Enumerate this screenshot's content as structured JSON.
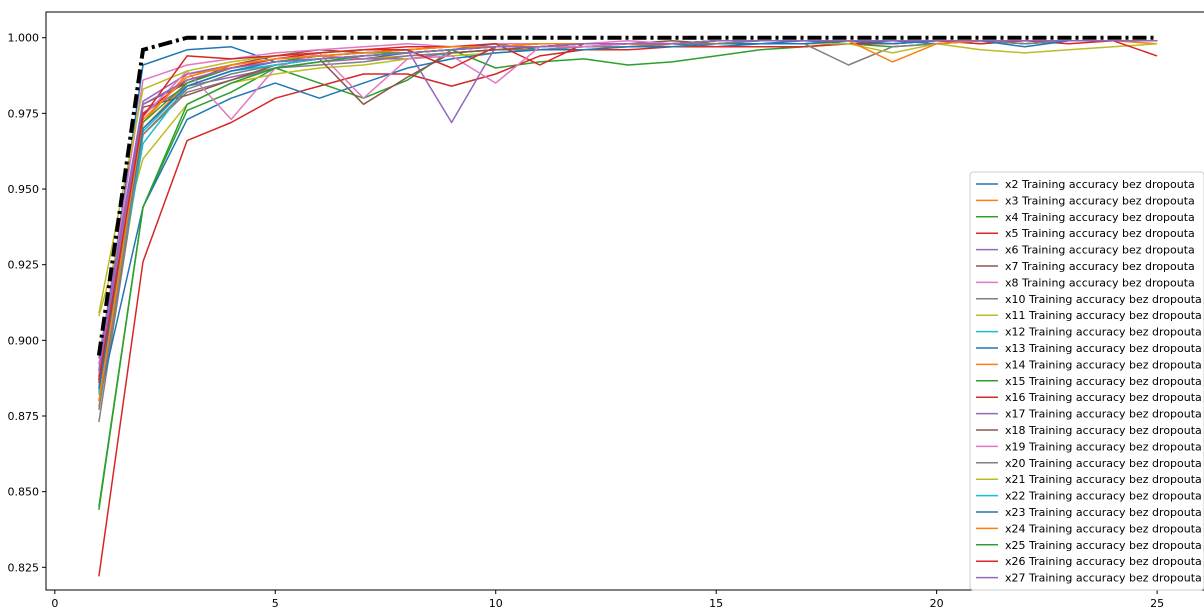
{
  "chart_data": {
    "type": "line",
    "title": "",
    "xlabel": "",
    "ylabel": "",
    "xlim": [
      -0.2,
      26.2
    ],
    "ylim": [
      0.8175,
      1.0085
    ],
    "xticks": [
      0,
      5,
      10,
      15,
      20,
      25
    ],
    "yticks": [
      0.825,
      0.85,
      0.875,
      0.9,
      0.925,
      0.95,
      0.975,
      1.0
    ],
    "xtick_labels": [
      "0",
      "5",
      "10",
      "15",
      "20",
      "25"
    ],
    "ytick_labels": [
      "0.825",
      "0.850",
      "0.875",
      "0.900",
      "0.925",
      "0.950",
      "0.975",
      "1.000"
    ],
    "grid": false,
    "legend_position": "lower-right",
    "x": [
      1,
      2,
      3,
      4,
      5,
      6,
      7,
      8,
      9,
      10,
      11,
      12,
      13,
      14,
      15,
      16,
      17,
      18,
      19,
      20,
      21,
      22,
      23,
      24,
      25
    ],
    "series": [
      {
        "name": "x2 Training accuracy bez dropouta",
        "color": "#1f77b4",
        "values": [
          0.89,
          0.991,
          0.996,
          0.997,
          0.992,
          0.994,
          0.993,
          0.995,
          0.996,
          0.998,
          0.996,
          0.997,
          0.998,
          0.998,
          0.997,
          0.998,
          0.999,
          0.998,
          0.999,
          0.998,
          0.999,
          0.998,
          0.999,
          0.999,
          0.999
        ]
      },
      {
        "name": "x3 Training accuracy bez dropouta",
        "color": "#ff7f0e",
        "values": [
          0.885,
          0.97,
          0.985,
          0.99,
          0.993,
          0.994,
          0.993,
          0.994,
          0.995,
          0.996,
          0.997,
          0.997,
          0.998,
          0.997,
          0.998,
          0.998,
          0.998,
          0.999,
          0.998,
          0.999,
          0.998,
          0.999,
          0.999,
          0.999,
          0.998
        ]
      },
      {
        "name": "x4 Training accuracy bez dropouta",
        "color": "#2ca02c",
        "values": [
          0.844,
          0.944,
          0.976,
          0.982,
          0.99,
          0.985,
          0.98,
          0.986,
          0.996,
          0.99,
          0.992,
          0.993,
          0.991,
          0.992,
          0.994,
          0.996,
          0.997,
          0.998,
          0.997,
          0.998,
          0.999,
          0.998,
          0.999,
          0.999,
          0.999
        ]
      },
      {
        "name": "x5 Training accuracy bez dropouta",
        "color": "#d62728",
        "values": [
          0.822,
          0.926,
          0.966,
          0.972,
          0.98,
          0.984,
          0.988,
          0.988,
          0.984,
          0.988,
          0.994,
          0.996,
          0.996,
          0.997,
          0.997,
          0.997,
          0.997,
          0.998,
          0.998,
          0.999,
          0.998,
          0.999,
          0.998,
          0.999,
          0.999
        ]
      },
      {
        "name": "x6 Training accuracy bez dropouta",
        "color": "#9467bd",
        "values": [
          0.892,
          0.975,
          0.984,
          0.987,
          0.99,
          0.992,
          0.993,
          0.993,
          0.995,
          0.996,
          0.996,
          0.997,
          0.997,
          0.998,
          0.998,
          0.998,
          0.998,
          0.999,
          0.998,
          0.999,
          0.999,
          0.999,
          0.999,
          0.999,
          0.999
        ]
      },
      {
        "name": "x7 Training accuracy bez dropouta",
        "color": "#8c564b",
        "values": [
          0.888,
          0.978,
          0.985,
          0.991,
          0.994,
          0.996,
          0.995,
          0.996,
          0.997,
          0.997,
          0.998,
          0.998,
          0.998,
          0.999,
          0.998,
          0.999,
          0.999,
          0.999,
          0.999,
          0.999,
          0.999,
          0.999,
          0.999,
          0.999,
          0.999
        ]
      },
      {
        "name": "x8 Training accuracy bez dropouta",
        "color": "#e377c2",
        "values": [
          0.892,
          0.986,
          0.991,
          0.993,
          0.995,
          0.996,
          0.997,
          0.998,
          0.997,
          0.998,
          0.998,
          0.998,
          0.999,
          0.998,
          0.999,
          0.999,
          0.999,
          0.999,
          0.999,
          0.999,
          0.999,
          0.999,
          0.999,
          0.999,
          0.999
        ]
      },
      {
        "name": "x10 Training accuracy bez dropouta",
        "color": "#7f7f7f",
        "values": [
          0.873,
          0.968,
          0.982,
          0.986,
          0.99,
          0.991,
          0.992,
          0.994,
          0.995,
          0.996,
          0.996,
          0.997,
          0.997,
          0.998,
          0.998,
          0.998,
          0.998,
          0.991,
          0.997,
          0.998,
          0.999,
          0.998,
          0.999,
          0.999,
          0.999
        ]
      },
      {
        "name": "x11 Training accuracy bez dropouta",
        "color": "#bcbd22",
        "values": [
          0.908,
          0.96,
          0.978,
          0.985,
          0.988,
          0.99,
          0.991,
          0.993,
          0.994,
          0.995,
          0.996,
          0.996,
          0.997,
          0.997,
          0.998,
          0.998,
          0.998,
          0.998,
          0.995,
          0.998,
          0.996,
          0.995,
          0.996,
          0.997,
          0.998
        ]
      },
      {
        "name": "x12 Training accuracy bez dropouta",
        "color": "#17becf",
        "values": [
          0.882,
          0.965,
          0.984,
          0.989,
          0.991,
          0.993,
          0.994,
          0.995,
          0.996,
          0.997,
          0.997,
          0.998,
          0.998,
          0.998,
          0.999,
          0.999,
          0.999,
          0.999,
          0.999,
          0.999,
          0.999,
          0.999,
          0.999,
          0.999,
          0.999
        ]
      },
      {
        "name": "x13 Training accuracy bez dropouta",
        "color": "#1f77b4",
        "values": [
          0.88,
          0.944,
          0.973,
          0.98,
          0.985,
          0.98,
          0.985,
          0.99,
          0.993,
          0.995,
          0.996,
          0.996,
          0.997,
          0.997,
          0.998,
          0.998,
          0.998,
          0.999,
          0.998,
          0.999,
          0.999,
          0.997,
          0.999,
          0.999,
          0.999
        ]
      },
      {
        "name": "x14 Training accuracy bez dropouta",
        "color": "#ff7f0e",
        "values": [
          0.878,
          0.972,
          0.988,
          0.99,
          0.993,
          0.994,
          0.995,
          0.996,
          0.997,
          0.997,
          0.998,
          0.998,
          0.998,
          0.998,
          0.999,
          0.999,
          0.999,
          0.999,
          0.992,
          0.998,
          0.999,
          0.999,
          0.999,
          0.999,
          0.999
        ]
      },
      {
        "name": "x15 Training accuracy bez dropouta",
        "color": "#2ca02c",
        "values": [
          0.886,
          0.972,
          0.985,
          0.99,
          0.992,
          0.994,
          0.995,
          0.995,
          0.996,
          0.997,
          0.997,
          0.998,
          0.998,
          0.998,
          0.999,
          0.999,
          0.999,
          0.999,
          0.999,
          0.999,
          0.999,
          0.999,
          0.999,
          0.999,
          0.999
        ]
      },
      {
        "name": "x16 Training accuracy bez dropouta",
        "color": "#d62728",
        "values": [
          0.886,
          0.975,
          0.986,
          0.99,
          0.993,
          0.995,
          0.996,
          0.997,
          0.997,
          0.998,
          0.991,
          0.998,
          0.998,
          0.998,
          0.999,
          0.999,
          0.999,
          0.999,
          0.999,
          0.999,
          0.999,
          0.999,
          0.999,
          0.999,
          0.994
        ]
      },
      {
        "name": "x17 Training accuracy bez dropouta",
        "color": "#9467bd",
        "values": [
          0.894,
          0.979,
          0.988,
          0.991,
          0.993,
          0.994,
          0.995,
          0.996,
          0.972,
          0.997,
          0.997,
          0.998,
          0.998,
          0.998,
          0.999,
          0.999,
          0.999,
          0.999,
          0.999,
          0.999,
          0.999,
          0.999,
          0.999,
          0.999,
          0.999
        ]
      },
      {
        "name": "x18 Training accuracy bez dropouta",
        "color": "#8c564b",
        "values": [
          0.887,
          0.977,
          0.981,
          0.986,
          0.991,
          0.993,
          0.978,
          0.987,
          0.995,
          0.996,
          0.997,
          0.997,
          0.998,
          0.998,
          0.998,
          0.999,
          0.999,
          0.999,
          0.999,
          0.999,
          0.999,
          0.999,
          0.999,
          0.999,
          0.999
        ]
      },
      {
        "name": "x19 Training accuracy bez dropouta",
        "color": "#e377c2",
        "values": [
          0.889,
          0.974,
          0.989,
          0.973,
          0.99,
          0.995,
          0.98,
          0.993,
          0.994,
          0.985,
          0.997,
          0.997,
          0.998,
          0.998,
          0.999,
          0.999,
          0.999,
          0.999,
          0.999,
          0.999,
          0.999,
          0.999,
          0.999,
          0.999,
          0.999
        ]
      },
      {
        "name": "x20 Training accuracy bez dropouta",
        "color": "#7f7f7f",
        "values": [
          0.877,
          0.968,
          0.983,
          0.988,
          0.991,
          0.993,
          0.994,
          0.995,
          0.996,
          0.997,
          0.997,
          0.998,
          0.998,
          0.998,
          0.998,
          0.999,
          0.999,
          0.999,
          0.999,
          0.999,
          0.999,
          0.999,
          0.999,
          0.999,
          0.999
        ]
      },
      {
        "name": "x21 Training accuracy bez dropouta",
        "color": "#bcbd22",
        "values": [
          0.909,
          0.983,
          0.989,
          0.992,
          0.994,
          0.995,
          0.996,
          0.996,
          0.997,
          0.997,
          0.998,
          0.998,
          0.998,
          0.998,
          0.999,
          0.999,
          0.999,
          0.999,
          0.999,
          0.999,
          0.999,
          0.999,
          0.999,
          0.999,
          0.999
        ]
      },
      {
        "name": "x22 Training accuracy bez dropouta",
        "color": "#17becf",
        "values": [
          0.883,
          0.969,
          0.984,
          0.989,
          0.991,
          0.993,
          0.994,
          0.995,
          0.996,
          0.997,
          0.997,
          0.998,
          0.998,
          0.998,
          0.999,
          0.999,
          0.999,
          0.999,
          0.999,
          0.999,
          0.999,
          0.999,
          0.999,
          0.999,
          0.999
        ]
      },
      {
        "name": "x23 Training accuracy bez dropouta",
        "color": "#1f77b4",
        "values": [
          0.884,
          0.97,
          0.984,
          0.989,
          0.992,
          0.993,
          0.994,
          0.995,
          0.996,
          0.997,
          0.997,
          0.998,
          0.998,
          0.998,
          0.999,
          0.999,
          0.999,
          0.999,
          0.999,
          0.999,
          0.999,
          0.999,
          0.999,
          0.999,
          0.999
        ]
      },
      {
        "name": "x24 Training accuracy bez dropouta",
        "color": "#ff7f0e",
        "values": [
          0.88,
          0.973,
          0.987,
          0.991,
          0.993,
          0.994,
          0.995,
          0.996,
          0.997,
          0.997,
          0.998,
          0.998,
          0.998,
          0.998,
          0.999,
          0.999,
          0.999,
          0.999,
          0.999,
          0.999,
          0.999,
          0.999,
          0.999,
          0.999,
          0.999
        ]
      },
      {
        "name": "x25 Training accuracy bez dropouta",
        "color": "#2ca02c",
        "values": [
          0.845,
          0.944,
          0.978,
          0.985,
          0.99,
          0.992,
          0.994,
          0.995,
          0.996,
          0.997,
          0.997,
          0.998,
          0.998,
          0.998,
          0.999,
          0.999,
          0.999,
          0.999,
          0.999,
          0.999,
          0.999,
          0.999,
          0.999,
          0.999,
          0.999
        ]
      },
      {
        "name": "x26 Training accuracy bez dropouta",
        "color": "#d62728",
        "values": [
          0.887,
          0.974,
          0.994,
          0.993,
          0.994,
          0.995,
          0.996,
          0.996,
          0.99,
          0.997,
          0.997,
          0.998,
          0.998,
          0.998,
          0.999,
          0.999,
          0.999,
          0.999,
          0.999,
          0.999,
          0.999,
          0.999,
          0.999,
          0.999,
          0.999
        ]
      },
      {
        "name": "x27 Training accuracy bez dropouta",
        "color": "#9467bd",
        "values": [
          0.89,
          0.978,
          0.986,
          0.99,
          0.992,
          0.993,
          0.994,
          0.995,
          0.996,
          0.997,
          0.997,
          0.998,
          0.998,
          0.998,
          0.999,
          0.999,
          0.999,
          0.999,
          0.999,
          0.999,
          0.999,
          0.999,
          0.999,
          0.999,
          0.999
        ]
      }
    ],
    "max_line": {
      "color": "#000000",
      "style": "dash-dot",
      "values": [
        0.895,
        0.996,
        1.0,
        1.0,
        1.0,
        1.0,
        1.0,
        1.0,
        1.0,
        1.0,
        1.0,
        1.0,
        1.0,
        1.0,
        1.0,
        1.0,
        1.0,
        1.0,
        1.0,
        1.0,
        1.0,
        1.0,
        1.0,
        1.0,
        1.0
      ]
    }
  }
}
